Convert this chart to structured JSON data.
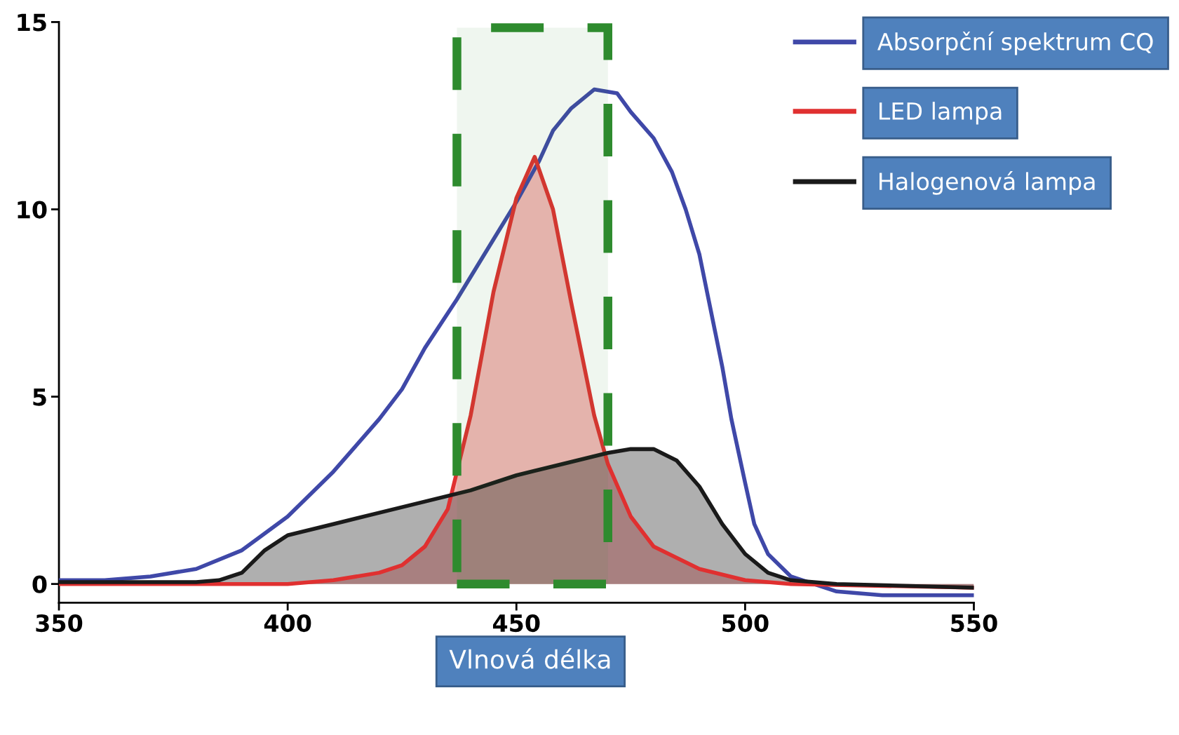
{
  "chart_data": {
    "type": "line",
    "xlabel": "Vlnová délka",
    "xlim": [
      350,
      550
    ],
    "xticks": [
      350,
      400,
      450,
      500,
      550
    ],
    "ylim": [
      -0.5,
      15
    ],
    "yticks": [
      0,
      5,
      10,
      15
    ],
    "grid": false,
    "legend": "right",
    "series": [
      {
        "name": "Absorpční spektrum CQ",
        "color": "#3f48a8",
        "x": [
          350,
          360,
          370,
          380,
          390,
          400,
          410,
          420,
          425,
          430,
          437,
          445,
          450,
          455,
          458,
          462,
          467,
          472,
          475,
          480,
          484,
          487,
          490,
          492,
          495,
          497,
          500,
          502,
          505,
          510,
          520,
          530,
          540,
          550
        ],
        "values": [
          0.1,
          0.1,
          0.2,
          0.4,
          0.9,
          1.8,
          3.0,
          4.4,
          5.2,
          6.3,
          7.6,
          9.2,
          10.2,
          11.3,
          12.1,
          12.7,
          13.2,
          13.1,
          12.6,
          11.9,
          11.0,
          10.0,
          8.8,
          7.6,
          5.8,
          4.4,
          2.7,
          1.6,
          0.8,
          0.2,
          -0.2,
          -0.3,
          -0.3,
          -0.3
        ]
      },
      {
        "name": "LED lampa",
        "color": "#e03030",
        "type": "area",
        "x": [
          350,
          380,
          400,
          410,
          420,
          425,
          430,
          435,
          440,
          445,
          450,
          454,
          458,
          462,
          467,
          470,
          475,
          480,
          490,
          500,
          510,
          550
        ],
        "values": [
          0.0,
          0.0,
          0.0,
          0.1,
          0.3,
          0.5,
          1.0,
          2.0,
          4.5,
          7.8,
          10.3,
          11.4,
          10.0,
          7.5,
          4.5,
          3.2,
          1.8,
          1.0,
          0.4,
          0.1,
          0.0,
          -0.1
        ]
      },
      {
        "name": "Halogenová lampa",
        "color": "#1a1a1a",
        "type": "area",
        "x": [
          350,
          380,
          385,
          390,
          395,
          400,
          410,
          420,
          430,
          440,
          450,
          460,
          470,
          475,
          480,
          485,
          490,
          495,
          500,
          505,
          510,
          520,
          550
        ],
        "values": [
          0.05,
          0.05,
          0.1,
          0.3,
          0.9,
          1.3,
          1.6,
          1.9,
          2.2,
          2.5,
          2.9,
          3.2,
          3.5,
          3.6,
          3.6,
          3.3,
          2.6,
          1.6,
          0.8,
          0.3,
          0.1,
          0.0,
          -0.1
        ]
      }
    ],
    "bands": [
      {
        "axis": "x",
        "from": 437,
        "to": 470,
        "color": "#2e8b2e"
      }
    ]
  }
}
